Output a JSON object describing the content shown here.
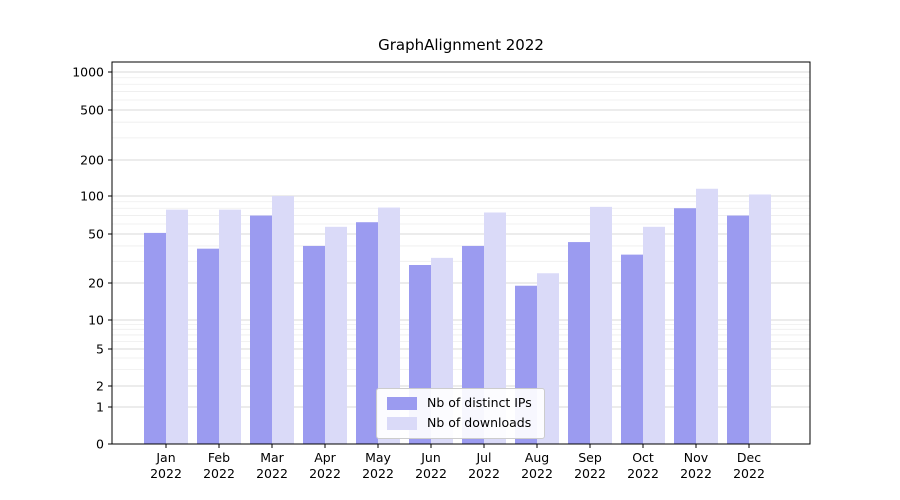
{
  "chart_data": {
    "type": "bar",
    "title": "GraphAlignment 2022",
    "categories": [
      "Jan 2022",
      "Feb 2022",
      "Mar 2022",
      "Apr 2022",
      "May 2022",
      "Jun 2022",
      "Jul 2022",
      "Aug 2022",
      "Sep 2022",
      "Oct 2022",
      "Nov 2022",
      "Dec 2022"
    ],
    "series": [
      {
        "name": "Nb of distinct IPs",
        "color": "#9b9bf0",
        "values": [
          51,
          38,
          70,
          40,
          62,
          28,
          40,
          19,
          43,
          34,
          80,
          70
        ]
      },
      {
        "name": "Nb of downloads",
        "color": "#dadaf8",
        "values": [
          78,
          78,
          100,
          57,
          81,
          32,
          74,
          24,
          82,
          57,
          115,
          103
        ]
      }
    ],
    "yscale": "symlog",
    "yticks": [
      0,
      1,
      2,
      5,
      10,
      20,
      50,
      100,
      200,
      500,
      1000
    ],
    "ylim": [
      0,
      1000
    ],
    "xlabel": "",
    "ylabel": "",
    "grid": "horizontal",
    "legend_position": "lower center"
  },
  "colors": {
    "grid_major": "#d9d9d9",
    "grid_minor": "#ededed",
    "axis": "#000000",
    "background": "#ffffff"
  }
}
